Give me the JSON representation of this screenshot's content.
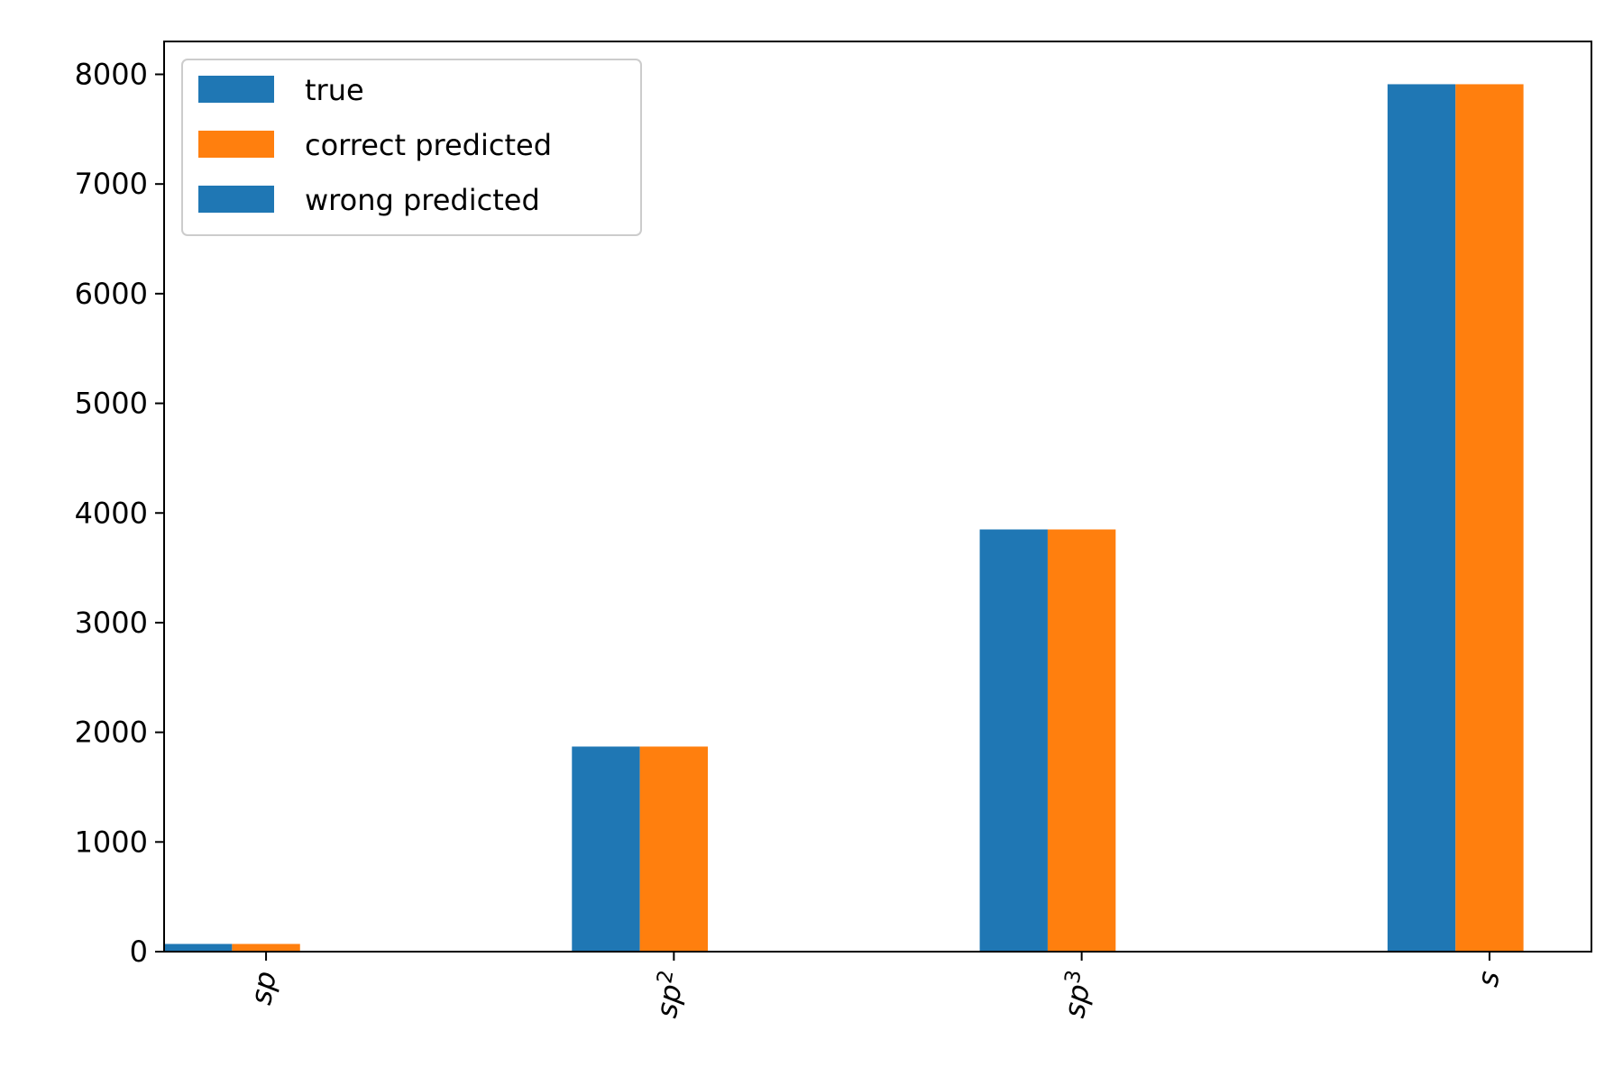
{
  "chart_data": {
    "type": "bar",
    "categories": [
      "sp",
      "sp2",
      "sp3",
      "s"
    ],
    "category_labels": [
      {
        "base": "sp",
        "sup": ""
      },
      {
        "base": "sp",
        "sup": "2"
      },
      {
        "base": "sp",
        "sup": "3"
      },
      {
        "base": "s",
        "sup": ""
      }
    ],
    "series": [
      {
        "name": "true",
        "color": "#1f77b4",
        "values": [
          70,
          1870,
          3850,
          7910
        ]
      },
      {
        "name": "correct predicted",
        "color": "#ff7f0e",
        "values": [
          70,
          1870,
          3850,
          7910
        ]
      },
      {
        "name": "wrong predicted",
        "color": "#1f77b4",
        "values": [
          0,
          0,
          0,
          0
        ]
      }
    ],
    "title": "",
    "xlabel": "",
    "ylabel": "",
    "ylim": [
      0,
      8300
    ],
    "yticks": [
      0,
      1000,
      2000,
      3000,
      4000,
      5000,
      6000,
      7000,
      8000
    ],
    "xtick_rotation": 80,
    "legend_position": "upper-left",
    "grid": false
  }
}
